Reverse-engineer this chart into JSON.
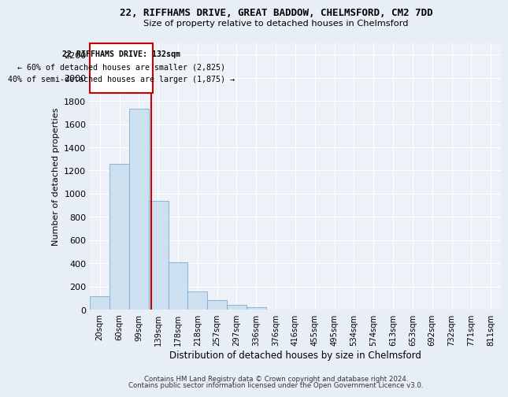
{
  "title": "22, RIFFHAMS DRIVE, GREAT BADDOW, CHELMSFORD, CM2 7DD",
  "subtitle": "Size of property relative to detached houses in Chelmsford",
  "xlabel": "Distribution of detached houses by size in Chelmsford",
  "ylabel": "Number of detached properties",
  "categories": [
    "20sqm",
    "60sqm",
    "99sqm",
    "139sqm",
    "178sqm",
    "218sqm",
    "257sqm",
    "297sqm",
    "336sqm",
    "376sqm",
    "416sqm",
    "455sqm",
    "495sqm",
    "534sqm",
    "574sqm",
    "613sqm",
    "653sqm",
    "692sqm",
    "732sqm",
    "771sqm",
    "811sqm"
  ],
  "values": [
    120,
    1260,
    1730,
    940,
    410,
    155,
    80,
    45,
    25,
    0,
    0,
    0,
    0,
    0,
    0,
    0,
    0,
    0,
    0,
    0,
    0
  ],
  "bar_color": "#cce0f0",
  "bar_edge_color": "#7aadd4",
  "vline_x": 2.62,
  "vline_color": "#cc0000",
  "annotation_title": "22 RIFFHAMS DRIVE: 132sqm",
  "annotation_line1": "← 60% of detached houses are smaller (2,825)",
  "annotation_line2": "40% of semi-detached houses are larger (1,875) →",
  "annotation_box_color": "#cc0000",
  "ylim": [
    0,
    2300
  ],
  "yticks": [
    0,
    200,
    400,
    600,
    800,
    1000,
    1200,
    1400,
    1600,
    1800,
    2000,
    2200
  ],
  "footer_line1": "Contains HM Land Registry data © Crown copyright and database right 2024.",
  "footer_line2": "Contains public sector information licensed under the Open Government Licence v3.0.",
  "background_color": "#e8eef5",
  "plot_bg_color": "#eef2f8"
}
